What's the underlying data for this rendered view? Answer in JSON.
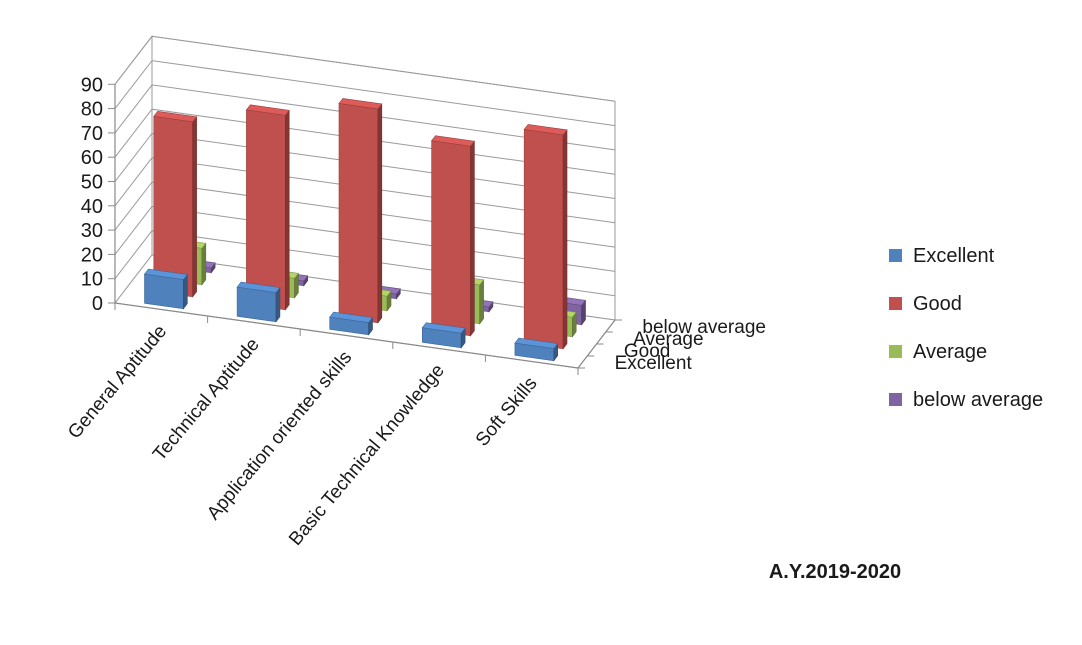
{
  "chart_data": {
    "type": "bar",
    "subtype": "3d-column",
    "title": "",
    "caption": "A.Y.2019-2020",
    "xlabel": "",
    "ylabel": "",
    "categories": [
      "General Aptitude",
      "Technical Aptitude",
      "Application oriented skills",
      "Basic Technical Knowledge",
      "Soft Skills"
    ],
    "series": [
      {
        "name": "Excellent",
        "color": "#4F81BD",
        "values": [
          12,
          12,
          5,
          6,
          5
        ]
      },
      {
        "name": "Good",
        "color": "#C0504D",
        "values": [
          72,
          80,
          88,
          78,
          88
        ]
      },
      {
        "name": "Average",
        "color": "#9BBB59",
        "values": [
          15,
          8,
          6,
          16,
          8
        ]
      },
      {
        "name": "below average",
        "color": "#8064A2",
        "values": [
          2,
          2,
          2,
          2,
          8
        ]
      }
    ],
    "depth_labels": [
      "below average",
      "Average",
      "Good",
      "Excellent"
    ],
    "y_ticks": [
      "0",
      "10",
      "20",
      "30",
      "40",
      "50",
      "60",
      "70",
      "80",
      "90"
    ],
    "ylim": [
      0,
      90
    ],
    "grid": true,
    "legend_position": "right"
  }
}
